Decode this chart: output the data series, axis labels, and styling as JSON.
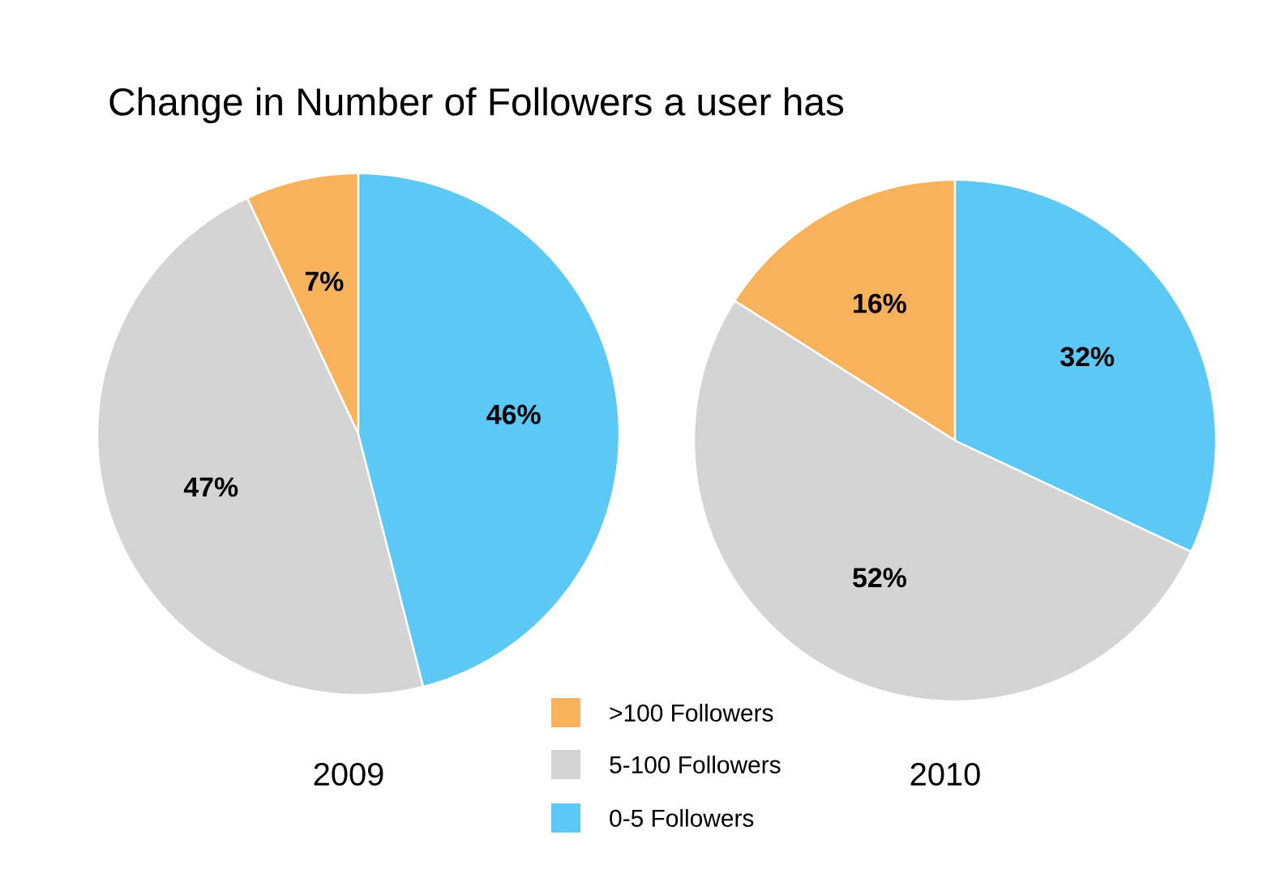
{
  "chart_data": [
    {
      "type": "pie",
      "title": "Change in Number of Followers a user has",
      "xlabel": "2009",
      "categories": [
        ">100 Followers",
        "5-100 Followers",
        "0-5 Followers"
      ],
      "values": [
        7,
        47,
        46
      ],
      "value_labels": [
        "7%",
        "47%",
        "46%"
      ],
      "colors": [
        "#f9b25c",
        "#d4d4d4",
        "#5bc8f5"
      ],
      "legend": "bottom"
    },
    {
      "type": "pie",
      "xlabel": "2010",
      "categories": [
        null,
        null,
        null
      ],
      "values": [
        16,
        52,
        32
      ],
      "value_labels": [
        "16%",
        "52%",
        "32%"
      ],
      "colors": [
        "#f9b25c",
        "#d4d4d4",
        "#5bc8f5"
      ]
    }
  ]
}
